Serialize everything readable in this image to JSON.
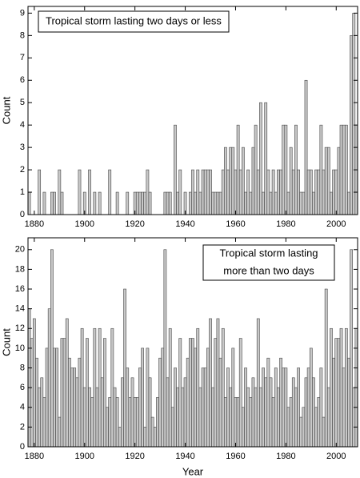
{
  "chart_data": [
    {
      "type": "bar",
      "annotation": [
        "Tropical storm lasting two days or less"
      ],
      "ylabel": "Count",
      "color": "#c8c8c8",
      "xlim": [
        1877.5,
        2008.5
      ],
      "xticks": [
        1880,
        1900,
        1920,
        1940,
        1960,
        1980,
        2000
      ],
      "ylim": [
        0,
        9.3
      ],
      "yticks": [
        0,
        1,
        2,
        3,
        4,
        5,
        6,
        7,
        8,
        9
      ],
      "x": [
        1878,
        1879,
        1880,
        1881,
        1882,
        1883,
        1884,
        1885,
        1886,
        1887,
        1888,
        1889,
        1890,
        1891,
        1892,
        1893,
        1894,
        1895,
        1896,
        1897,
        1898,
        1899,
        1900,
        1901,
        1902,
        1903,
        1904,
        1905,
        1906,
        1907,
        1908,
        1909,
        1910,
        1911,
        1912,
        1913,
        1914,
        1915,
        1916,
        1917,
        1918,
        1919,
        1920,
        1921,
        1922,
        1923,
        1924,
        1925,
        1926,
        1927,
        1928,
        1929,
        1930,
        1931,
        1932,
        1933,
        1934,
        1935,
        1936,
        1937,
        1938,
        1939,
        1940,
        1941,
        1942,
        1943,
        1944,
        1945,
        1946,
        1947,
        1948,
        1949,
        1950,
        1951,
        1952,
        1953,
        1954,
        1955,
        1956,
        1957,
        1958,
        1959,
        1960,
        1961,
        1962,
        1963,
        1964,
        1965,
        1966,
        1967,
        1968,
        1969,
        1970,
        1971,
        1972,
        1973,
        1974,
        1975,
        1976,
        1977,
        1978,
        1979,
        1980,
        1981,
        1982,
        1983,
        1984,
        1985,
        1986,
        1987,
        1988,
        1989,
        1990,
        1991,
        1992,
        1993,
        1994,
        1995,
        1996,
        1997,
        1998,
        1999,
        2000,
        2001,
        2002,
        2003,
        2004,
        2005,
        2006,
        2007,
        2008
      ],
      "values": [
        1,
        0,
        0,
        0,
        2,
        0,
        1,
        0,
        0,
        1,
        1,
        0,
        2,
        1,
        0,
        0,
        0,
        0,
        0,
        0,
        2,
        0,
        1,
        0,
        2,
        0,
        1,
        0,
        1,
        0,
        0,
        0,
        2,
        0,
        0,
        1,
        0,
        0,
        0,
        1,
        0,
        0,
        1,
        1,
        1,
        1,
        1,
        2,
        1,
        0,
        0,
        0,
        0,
        0,
        1,
        1,
        1,
        0,
        4,
        1,
        2,
        0,
        1,
        0,
        1,
        2,
        1,
        2,
        1,
        2,
        2,
        2,
        2,
        1,
        1,
        1,
        1,
        2,
        3,
        2,
        3,
        3,
        2,
        4,
        2,
        3,
        1,
        2,
        1,
        3,
        4,
        2,
        5,
        1,
        5,
        2,
        1,
        2,
        1,
        2,
        2,
        4,
        4,
        1,
        3,
        2,
        4,
        2,
        1,
        1,
        6,
        2,
        2,
        1,
        2,
        2,
        4,
        2,
        3,
        3,
        1,
        2,
        2,
        3,
        4,
        4,
        4,
        1,
        8,
        9,
        4
      ]
    },
    {
      "type": "bar",
      "annotation": [
        "Tropical storm lasting",
        "more than two days"
      ],
      "ylabel": "Count",
      "xlabel": "Year",
      "color": "#c8c8c8",
      "xlim": [
        1877.5,
        2008.5
      ],
      "xticks": [
        1880,
        1900,
        1920,
        1940,
        1960,
        1980,
        2000
      ],
      "ylim": [
        0,
        21.2
      ],
      "yticks": [
        0,
        2,
        4,
        6,
        8,
        10,
        12,
        14,
        16,
        18,
        20
      ],
      "x": [
        1878,
        1879,
        1880,
        1881,
        1882,
        1883,
        1884,
        1885,
        1886,
        1887,
        1888,
        1889,
        1890,
        1891,
        1892,
        1893,
        1894,
        1895,
        1896,
        1897,
        1898,
        1899,
        1900,
        1901,
        1902,
        1903,
        1904,
        1905,
        1906,
        1907,
        1908,
        1909,
        1910,
        1911,
        1912,
        1913,
        1914,
        1915,
        1916,
        1917,
        1918,
        1919,
        1920,
        1921,
        1922,
        1923,
        1924,
        1925,
        1926,
        1927,
        1928,
        1929,
        1930,
        1931,
        1932,
        1933,
        1934,
        1935,
        1936,
        1937,
        1938,
        1939,
        1940,
        1941,
        1942,
        1943,
        1944,
        1945,
        1946,
        1947,
        1948,
        1949,
        1950,
        1951,
        1952,
        1953,
        1954,
        1955,
        1956,
        1957,
        1958,
        1959,
        1960,
        1961,
        1962,
        1963,
        1964,
        1965,
        1966,
        1967,
        1968,
        1969,
        1970,
        1971,
        1972,
        1973,
        1974,
        1975,
        1976,
        1977,
        1978,
        1979,
        1980,
        1981,
        1982,
        1983,
        1984,
        1985,
        1986,
        1987,
        1988,
        1989,
        1990,
        1991,
        1992,
        1993,
        1994,
        1995,
        1996,
        1997,
        1998,
        1999,
        2000,
        2001,
        2002,
        2003,
        2004,
        2005,
        2006,
        2007,
        2008
      ],
      "values": [
        14,
        11,
        13,
        9,
        6,
        7,
        5,
        10,
        14,
        20,
        10,
        10,
        3,
        11,
        11,
        13,
        9,
        8,
        8,
        7,
        9,
        12,
        6,
        11,
        6,
        5,
        12,
        6,
        12,
        7,
        11,
        4,
        5,
        12,
        6,
        5,
        2,
        7,
        16,
        8,
        5,
        7,
        5,
        5,
        8,
        10,
        2,
        10,
        7,
        3,
        2,
        5,
        9,
        10,
        20,
        7,
        12,
        4,
        8,
        6,
        11,
        6,
        7,
        9,
        11,
        11,
        10,
        12,
        6,
        8,
        8,
        10,
        13,
        6,
        11,
        13,
        9,
        12,
        5,
        8,
        6,
        10,
        5,
        5,
        11,
        4,
        8,
        6,
        5,
        7,
        6,
        13,
        6,
        8,
        7,
        9,
        7,
        5,
        8,
        6,
        9,
        8,
        8,
        4,
        5,
        7,
        6,
        8,
        3,
        4,
        7,
        8,
        10,
        7,
        4,
        5,
        8,
        3,
        16,
        6,
        12,
        9,
        11,
        11,
        12,
        8,
        12,
        9,
        20,
        6,
        12
      ]
    }
  ]
}
